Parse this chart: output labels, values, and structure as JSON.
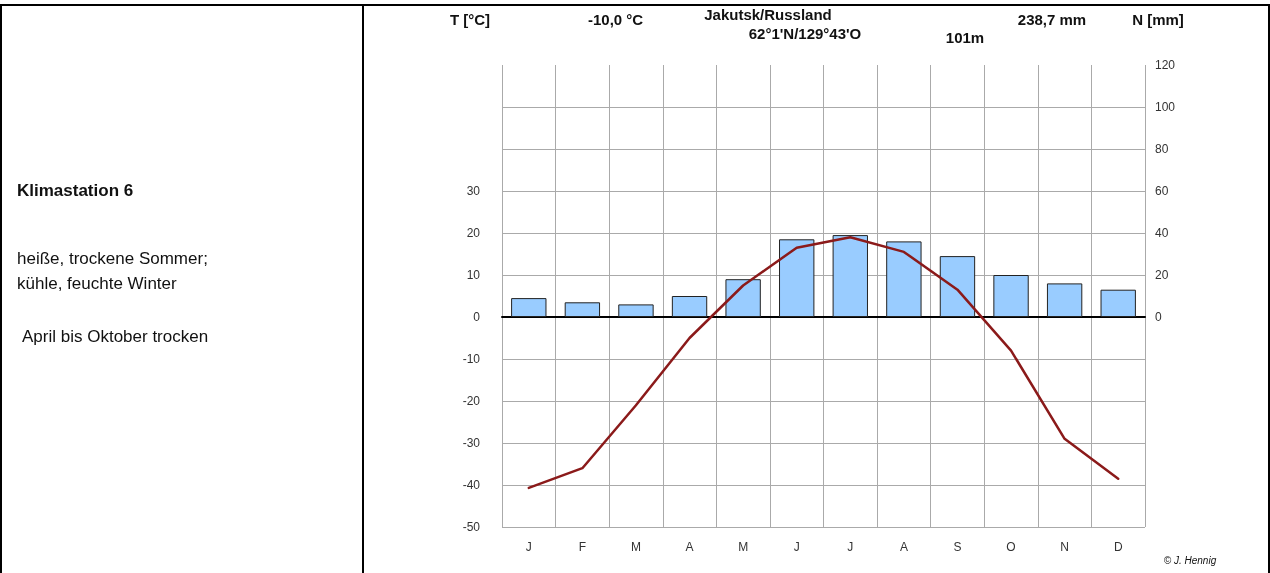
{
  "chart_data": {
    "type": "bar",
    "title": "Jakutsk/Russland",
    "subtitle": "62°1'N/129°43'O",
    "ylabel": "T [°C]",
    "y2label": "N [mm]",
    "annotations": [
      "-10,0 °C",
      "101m",
      "238,7 mm",
      "© J. Hennig",
      "Klimastation 6",
      "heiße, trockene Sommer;",
      "kühle, feuchte Winter",
      "April bis Oktober trocken"
    ],
    "categories": [
      "J",
      "F",
      "M",
      "A",
      "M",
      "J",
      "J",
      "A",
      "S",
      "O",
      "N",
      "D"
    ],
    "series": [
      {
        "axis": "y2",
        "color": "#99ccff",
        "values": [
          9,
          7,
          6,
          10,
          18,
          37,
          39,
          36,
          29,
          20,
          16,
          13
        ]
      },
      {
        "type": "line",
        "color": "#8b1a1a",
        "values": [
          -40.7,
          -36,
          -21,
          -5,
          7.5,
          16.5,
          19,
          15.5,
          6.5,
          -8,
          -29,
          -38.5
        ]
      }
    ],
    "ylim": [
      -50,
      60
    ],
    "yticks": [
      -50,
      -40,
      -30,
      -20,
      -10,
      0,
      10,
      20,
      30,
      {
        "value": 40,
        "label": null
      },
      {
        "value": 50,
        "label": null
      }
    ],
    "y2lim": [
      -100,
      120
    ],
    "y2ticks": [
      0,
      20,
      40,
      60,
      80,
      100,
      120
    ],
    "grid": true,
    "marker": "none",
    "line_style": "solid"
  }
}
